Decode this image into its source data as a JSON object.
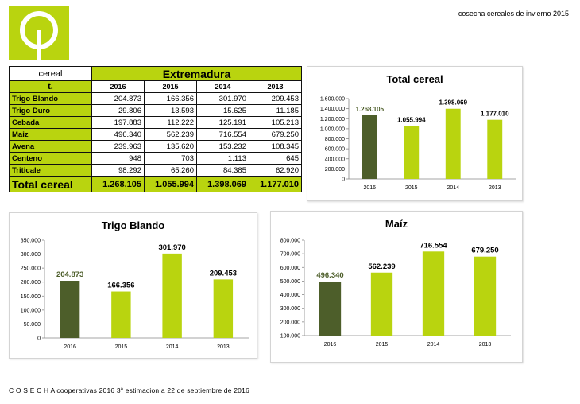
{
  "header": {
    "title": "cosecha cereales de invierno 2015"
  },
  "footer": {
    "text": "C O S E C H A cooperativas 2016  3ª estimacion a 22 de septiembre de 2016"
  },
  "colors": {
    "green": "#b9d40f",
    "dark": "#4d5e2a"
  },
  "table": {
    "corner_label": "cereal",
    "region": "Extremadura",
    "unit_label": "t.",
    "years": [
      "2016",
      "2015",
      "2014",
      "2013"
    ],
    "rows": [
      {
        "name": "Trigo Blando",
        "values": [
          "204.873",
          "166.356",
          "301.970",
          "209.453"
        ]
      },
      {
        "name": "Trigo Duro",
        "values": [
          "29.806",
          "13.593",
          "15.625",
          "11.185"
        ]
      },
      {
        "name": "Cebada",
        "values": [
          "197.883",
          "112.222",
          "125.191",
          "105.213"
        ]
      },
      {
        "name": "Maiz",
        "values": [
          "496.340",
          "562.239",
          "716.554",
          "679.250"
        ]
      },
      {
        "name": "Avena",
        "values": [
          "239.963",
          "135.620",
          "153.232",
          "108.345"
        ]
      },
      {
        "name": "Centeno",
        "values": [
          "948",
          "703",
          "1.113",
          "645"
        ]
      },
      {
        "name": "Triticale",
        "values": [
          "98.292",
          "65.260",
          "84.385",
          "62.920"
        ]
      }
    ],
    "total": {
      "name": "Total cereal",
      "values": [
        "1.268.105",
        "1.055.994",
        "1.398.069",
        "1.177.010"
      ]
    }
  },
  "chart_data": [
    {
      "type": "bar",
      "title": "Total cereal",
      "categories": [
        "2016",
        "2015",
        "2014",
        "2013"
      ],
      "values": [
        1268105,
        1055994,
        1398069,
        1177010
      ],
      "value_labels": [
        "1.268.105",
        "1.055.994",
        "1.398.069",
        "1.177.010"
      ],
      "ylim": [
        0,
        1600000
      ],
      "yticks": [
        0,
        200000,
        400000,
        600000,
        800000,
        1000000,
        1200000,
        1400000,
        1600000
      ],
      "ytick_labels": [
        "0",
        "200.000",
        "400.000",
        "600.000",
        "800.000",
        "1.000.000",
        "1.200.000",
        "1.400.000",
        "1.600.000"
      ]
    },
    {
      "type": "bar",
      "title": "Trigo Blando",
      "categories": [
        "2016",
        "2015",
        "2014",
        "2013"
      ],
      "values": [
        204873,
        166356,
        301970,
        209453
      ],
      "value_labels": [
        "204.873",
        "166.356",
        "301.970",
        "209.453"
      ],
      "ylim": [
        0,
        350000
      ],
      "yticks": [
        0,
        50000,
        100000,
        150000,
        200000,
        250000,
        300000,
        350000
      ],
      "ytick_labels": [
        "0",
        "50.000",
        "100.000",
        "150.000",
        "200.000",
        "250.000",
        "300.000",
        "350.000"
      ]
    },
    {
      "type": "bar",
      "title": "Maíz",
      "categories": [
        "2016",
        "2015",
        "2014",
        "2013"
      ],
      "values": [
        496340,
        562239,
        716554,
        679250
      ],
      "value_labels": [
        "496.340",
        "562.239",
        "716.554",
        "679.250"
      ],
      "ylim": [
        100000,
        800000
      ],
      "yticks": [
        100000,
        200000,
        300000,
        400000,
        500000,
        600000,
        700000,
        800000
      ],
      "ytick_labels": [
        "100.000",
        "200.000",
        "300.000",
        "400.000",
        "500.000",
        "600.000",
        "700.000",
        "800.000"
      ]
    }
  ]
}
